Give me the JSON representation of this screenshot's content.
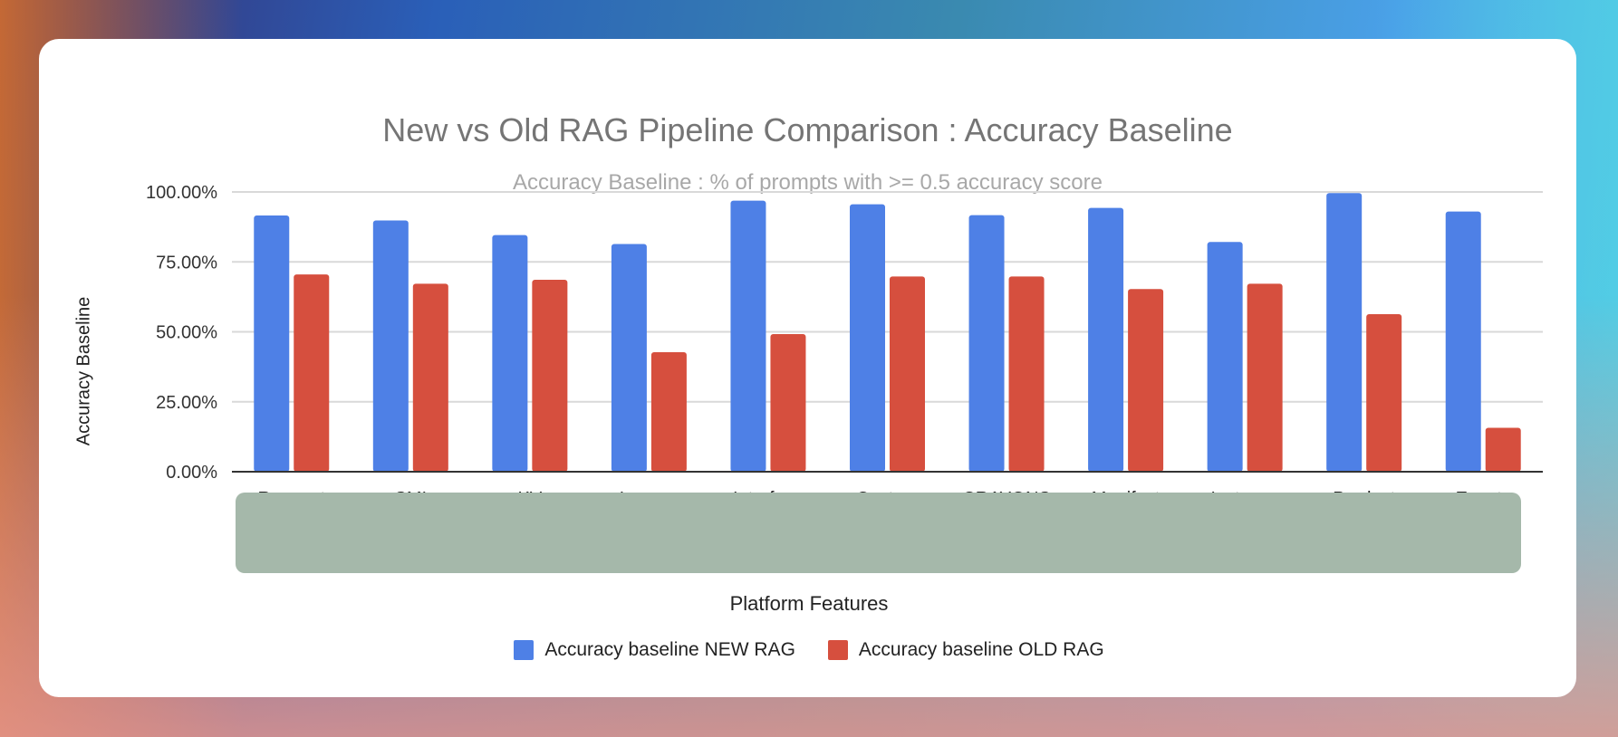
{
  "chart_data": {
    "type": "bar",
    "title": "New vs Old RAG Pipeline Comparison : Accuracy Baseline",
    "subtitle": "Accuracy Baseline : % of prompts with >= 0.5 accuracy score",
    "xlabel": "Platform Features",
    "ylabel": "Accuracy Baseline",
    "ylim": [
      0,
      100
    ],
    "yticks": [
      "0.00%",
      "25.00%",
      "50.00%",
      "75.00%",
      "100.00%"
    ],
    "grid": true,
    "legend_position": "bottom",
    "categories": [
      "Request",
      "SMI",
      "KV",
      "Income",
      "Interface",
      "Custom",
      "CRAYONS",
      "Manifest",
      "Instance",
      "Product",
      "Events"
    ],
    "series": [
      {
        "name": "Accuracy baseline NEW RAG",
        "color": "#4e80e6",
        "values": [
          91.6,
          89.8,
          84.6,
          81.4,
          96.9,
          95.6,
          91.7,
          94.3,
          82.1,
          99.6,
          93.0
        ]
      },
      {
        "name": "Accuracy baseline OLD RAG",
        "color": "#d64f3e",
        "values": [
          70.5,
          67.2,
          68.6,
          42.7,
          49.2,
          69.8,
          69.8,
          65.3,
          67.2,
          56.3,
          15.7
        ]
      }
    ]
  }
}
